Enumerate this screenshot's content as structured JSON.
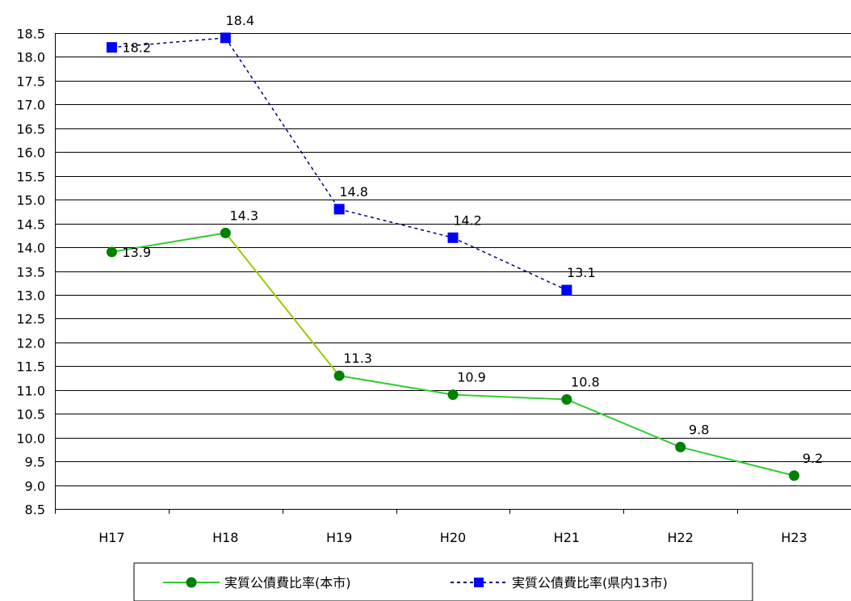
{
  "chart_data": {
    "type": "line",
    "categories": [
      "H17",
      "H18",
      "H19",
      "H20",
      "H21",
      "H22",
      "H23"
    ],
    "ylim": [
      8.5,
      18.5
    ],
    "ystep": 0.5,
    "grid": true,
    "legend_placement": "bottom",
    "series": [
      {
        "name": "実質公債費比率(本市)",
        "values": [
          13.9,
          14.3,
          11.3,
          10.9,
          10.8,
          9.8,
          9.2
        ],
        "labels": [
          "13.9",
          "14.3",
          "11.3",
          "10.9",
          "10.8",
          "9.8",
          "9.2"
        ],
        "color": "#33cc33",
        "highlight_color": "#99cc00",
        "marker_color": "#008000",
        "marker": "circle",
        "line_style": "solid"
      },
      {
        "name": "実質公債費比率(県内13市)",
        "values": [
          18.2,
          18.4,
          14.8,
          14.2,
          13.1,
          null,
          null
        ],
        "labels": [
          "18.2",
          "18.4",
          "14.8",
          "14.2",
          "13.1",
          "",
          ""
        ],
        "color": "#000080",
        "marker_color": "#0000ff",
        "marker": "square",
        "line_style": "dashed"
      }
    ]
  },
  "legend": {
    "series_1_label": "実質公債費比率(本市)",
    "series_2_label": "実質公債費比率(県内13市)"
  }
}
